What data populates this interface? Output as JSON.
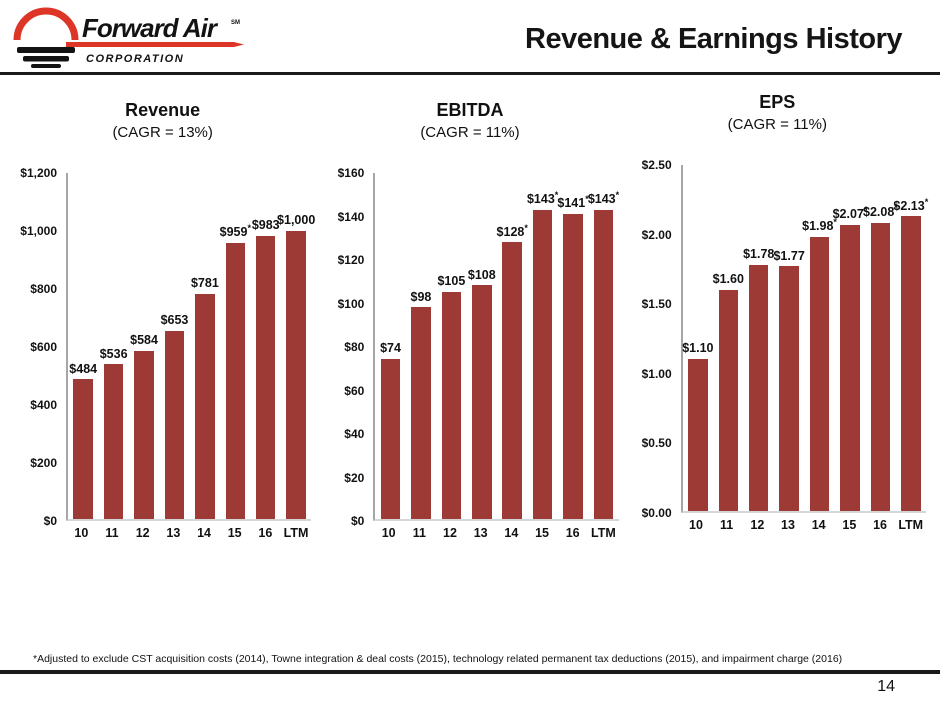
{
  "header": {
    "title": "Revenue & Earnings History",
    "logo": {
      "brand": "Forward Air",
      "trademark": "SM",
      "sub": "CORPORATION"
    }
  },
  "colors": {
    "bar": "#9E3A36",
    "logo_red": "#DD3526",
    "logo_black": "#131313"
  },
  "chart_data": [
    {
      "type": "bar",
      "title": "Revenue",
      "subtitle": "(CAGR = 13%)",
      "categories": [
        "10",
        "11",
        "12",
        "13",
        "14",
        "15",
        "16",
        "LTM"
      ],
      "values": [
        484,
        536,
        584,
        653,
        781,
        959,
        983,
        1000
      ],
      "labels": [
        "$484",
        "$536",
        "$584",
        "$653",
        "$781",
        "$959*",
        "$983",
        "$1,000"
      ],
      "ylim": [
        0,
        1200
      ],
      "ytick_step": 200,
      "ytick_labels": [
        "$0",
        "$200",
        "$400",
        "$600",
        "$800",
        "$1,000",
        "$1,200"
      ],
      "grid": false,
      "legend": "none"
    },
    {
      "type": "bar",
      "title": "EBITDA",
      "subtitle": "(CAGR = 11%)",
      "categories": [
        "10",
        "11",
        "12",
        "13",
        "14",
        "15",
        "16",
        "LTM"
      ],
      "values": [
        74,
        98,
        105,
        108,
        128,
        143,
        141,
        143
      ],
      "labels": [
        "$74",
        "$98",
        "$105",
        "$108",
        "$128*",
        "$143*",
        "$141*",
        "$143*"
      ],
      "ylim": [
        0,
        160
      ],
      "ytick_step": 20,
      "ytick_labels": [
        "$0",
        "$20",
        "$40",
        "$60",
        "$80",
        "$100",
        "$120",
        "$140",
        "$160"
      ],
      "grid": false,
      "legend": "none"
    },
    {
      "type": "bar",
      "title": "EPS",
      "subtitle": "(CAGR = 11%)",
      "categories": [
        "10",
        "11",
        "12",
        "13",
        "14",
        "15",
        "16",
        "LTM"
      ],
      "values": [
        1.1,
        1.6,
        1.78,
        1.77,
        1.98,
        2.07,
        2.08,
        2.13
      ],
      "labels": [
        "$1.10",
        "$1.60",
        "$1.78",
        "$1.77",
        "$1.98*",
        "$2.07*",
        "$2.08*",
        "$2.13*"
      ],
      "ylim": [
        0,
        2.5
      ],
      "ytick_step": 0.5,
      "ytick_labels": [
        "$0.00",
        "$0.50",
        "$1.00",
        "$1.50",
        "$2.00",
        "$2.50"
      ],
      "grid": false,
      "legend": "none"
    }
  ],
  "footnote": "*Adjusted to exclude CST acquisition costs (2014), Towne integration & deal costs (2015), technology related permanent tax deductions (2015), and impairment charge (2016)",
  "page_number": "14"
}
